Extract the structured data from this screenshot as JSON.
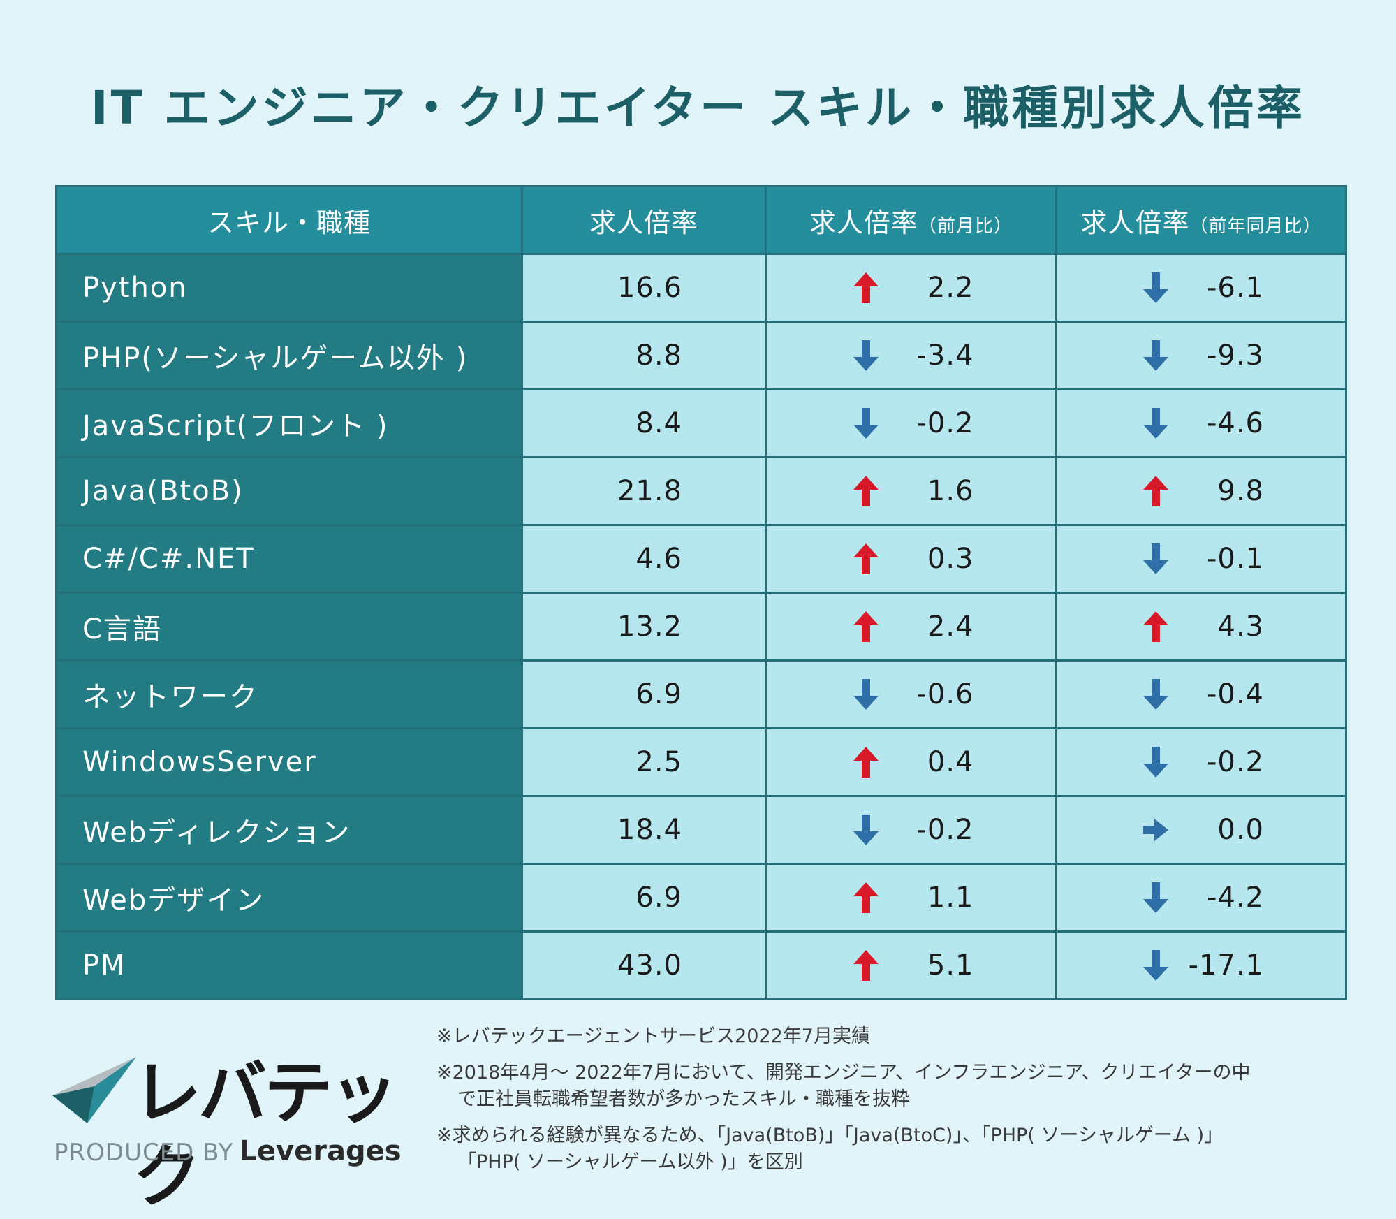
{
  "title": "IT エンジニア・クリエイター スキル・職種別求人倍率",
  "table": {
    "headers": {
      "skill": "スキル・職種",
      "ratio": "求人倍率",
      "mom_main": "求人倍率",
      "mom_sub": "（前月比）",
      "yoy_main": "求人倍率",
      "yoy_sub": "（前年同月比）"
    }
  },
  "colors": {
    "up": "#d7192a",
    "down": "#2e6fa8",
    "flat": "#2e6fa8"
  },
  "chart_data": {
    "type": "table",
    "title": "IT エンジニア・クリエイター スキル・職種別求人倍率",
    "columns": [
      "スキル・職種",
      "求人倍率",
      "求人倍率（前月比）",
      "求人倍率（前年同月比）"
    ],
    "rows": [
      {
        "name": "Python",
        "ratio": "16.6",
        "mom": "2.2",
        "mom_dir": "up",
        "yoy": "-6.1",
        "yoy_dir": "down"
      },
      {
        "name": "PHP(ソーシャルゲーム以外 )",
        "ratio": "8.8",
        "mom": "-3.4",
        "mom_dir": "down",
        "yoy": "-9.3",
        "yoy_dir": "down"
      },
      {
        "name": "JavaScript(フロント )",
        "ratio": "8.4",
        "mom": "-0.2",
        "mom_dir": "down",
        "yoy": "-4.6",
        "yoy_dir": "down"
      },
      {
        "name": "Java(BtoB)",
        "ratio": "21.8",
        "mom": "1.6",
        "mom_dir": "up",
        "yoy": "9.8",
        "yoy_dir": "up"
      },
      {
        "name": "C#/C#.NET",
        "ratio": "4.6",
        "mom": "0.3",
        "mom_dir": "up",
        "yoy": "-0.1",
        "yoy_dir": "down"
      },
      {
        "name": "C言語",
        "ratio": "13.2",
        "mom": "2.4",
        "mom_dir": "up",
        "yoy": "4.3",
        "yoy_dir": "up"
      },
      {
        "name": "ネットワーク",
        "ratio": "6.9",
        "mom": "-0.6",
        "mom_dir": "down",
        "yoy": "-0.4",
        "yoy_dir": "down"
      },
      {
        "name": "WindowsServer",
        "ratio": "2.5",
        "mom": "0.4",
        "mom_dir": "up",
        "yoy": "-0.2",
        "yoy_dir": "down"
      },
      {
        "name": "Webディレクション",
        "ratio": "18.4",
        "mom": "-0.2",
        "mom_dir": "down",
        "yoy": "0.0",
        "yoy_dir": "flat"
      },
      {
        "name": "Webデザイン",
        "ratio": "6.9",
        "mom": "1.1",
        "mom_dir": "up",
        "yoy": "-4.2",
        "yoy_dir": "down"
      },
      {
        "name": "PM",
        "ratio": "43.0",
        "mom": "5.1",
        "mom_dir": "up",
        "yoy": "-17.1",
        "yoy_dir": "down"
      }
    ]
  },
  "notes": {
    "note1": "※レバテックエージェントサービス2022年7月実績",
    "note2a": "※2018年4月～ 2022年7月において、開発エンジニア、インフラエンジニア、クリエイターの中",
    "note2b": "で正社員転職希望者数が多かったスキル・職種を抜粋",
    "note3a": "※求められる経験が異なるため、「Java(BtoB)」「Java(BtoC)」、「PHP( ソーシャルゲーム )」",
    "note3b": "「PHP( ソーシャルゲーム以外 )」を区別"
  },
  "logo": {
    "text": "レバテック",
    "produced_by": "PRODUCED BY",
    "brand": "Leverages",
    "icon": "checkmark-logo-icon"
  }
}
